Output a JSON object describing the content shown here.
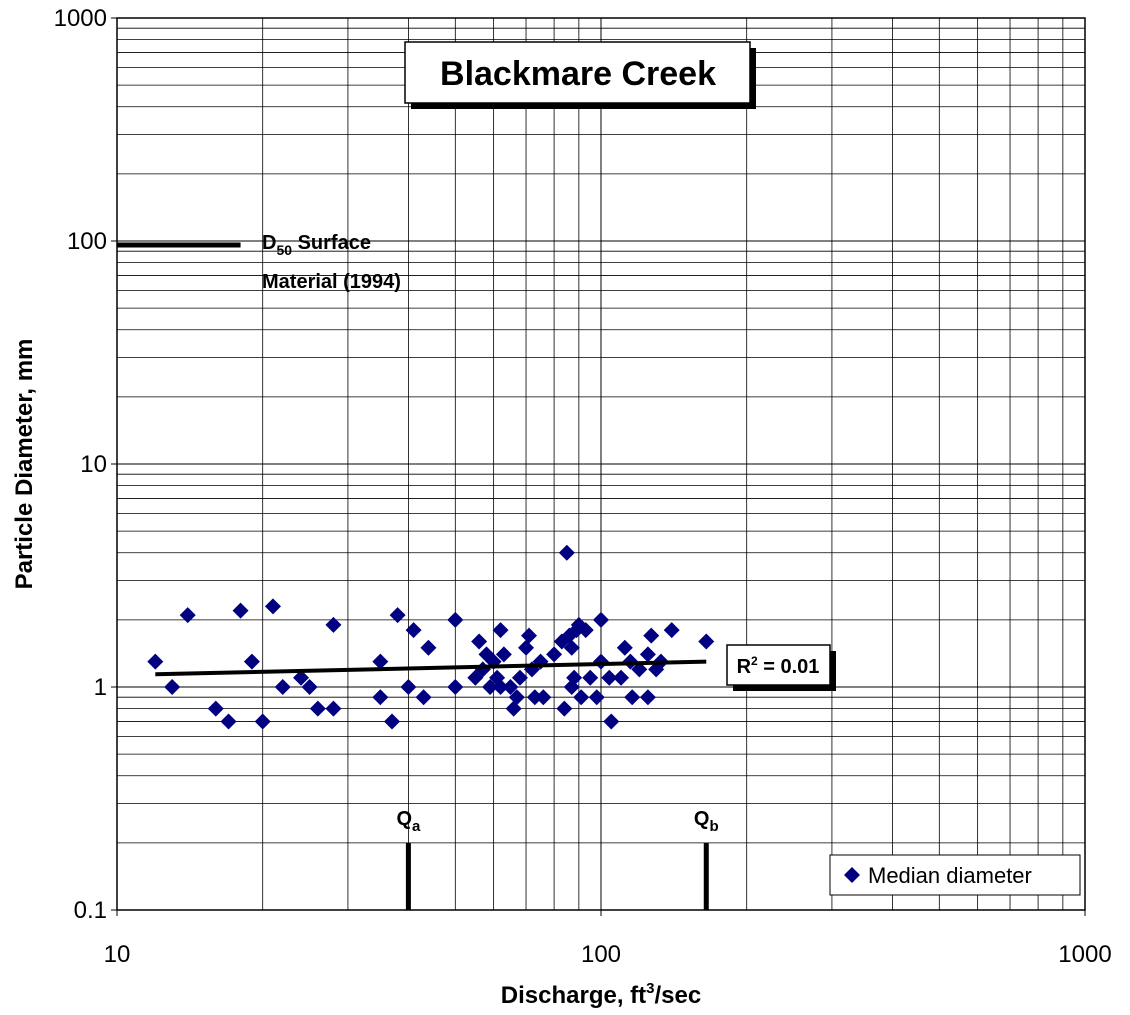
{
  "chart_data": {
    "type": "scatter",
    "title": "Blackmare Creek",
    "x_label": [
      "Discharge, ft",
      "3",
      "/sec"
    ],
    "y_label": "Particle Diameter, mm",
    "xlim": [
      10,
      1000
    ],
    "ylim": [
      0.1,
      1000
    ],
    "xticks": [
      10,
      100,
      1000
    ],
    "yticks": [
      0.1,
      1,
      10,
      100,
      1000
    ],
    "log_x": true,
    "log_y": true,
    "grid": true,
    "minor_grid": true,
    "legend": "lower right",
    "series": [
      {
        "name": "Median diameter",
        "color": "#000080",
        "x": [
          12,
          13,
          14,
          16,
          17,
          18,
          19,
          20,
          21,
          22,
          24,
          25,
          26,
          28,
          28,
          35,
          35,
          37,
          38,
          40,
          41,
          43,
          44,
          50,
          50,
          55,
          56,
          57,
          58,
          59,
          60,
          61,
          62,
          62,
          63,
          65,
          66,
          67,
          68,
          70,
          71,
          72,
          73,
          75,
          76,
          80,
          83,
          84,
          85,
          86,
          87,
          87,
          88,
          89,
          90,
          91,
          93,
          95,
          98,
          100,
          100,
          104,
          105,
          110,
          112,
          115,
          116,
          120,
          125,
          125,
          127,
          130,
          133,
          140,
          165
        ],
        "values": [
          1.3,
          1.0,
          2.1,
          0.8,
          0.7,
          2.2,
          1.3,
          0.7,
          2.3,
          1.0,
          1.1,
          1.0,
          0.8,
          0.8,
          1.9,
          1.3,
          0.9,
          0.7,
          2.1,
          1.0,
          1.8,
          0.9,
          1.5,
          1.0,
          2.0,
          1.1,
          1.6,
          1.2,
          1.4,
          1.0,
          1.3,
          1.1,
          1.8,
          1.0,
          1.4,
          1.0,
          0.8,
          0.9,
          1.1,
          1.5,
          1.7,
          1.2,
          0.9,
          1.3,
          0.9,
          1.4,
          1.6,
          0.8,
          4.0,
          1.7,
          1.0,
          1.5,
          1.1,
          1.8,
          1.9,
          0.9,
          1.8,
          1.1,
          0.9,
          1.3,
          2.0,
          1.1,
          0.7,
          1.1,
          1.5,
          1.3,
          0.9,
          1.2,
          1.4,
          0.9,
          1.7,
          1.2,
          1.3,
          1.8,
          1.6
        ]
      }
    ],
    "trendline": {
      "x": [
        12,
        165
      ],
      "values": [
        1.14,
        1.3
      ],
      "label": [
        "R",
        "2",
        " = 0.01"
      ]
    },
    "d50_line": {
      "x": [
        10,
        18
      ],
      "values": [
        96,
        96
      ],
      "label": [
        "D",
        "50",
        " Surface",
        "Material (1994)"
      ]
    },
    "markers": [
      {
        "label": [
          "Q",
          "a"
        ],
        "x": [
          40,
          40
        ],
        "values": [
          0.1,
          0.2
        ]
      },
      {
        "label": [
          "Q",
          "b"
        ],
        "x": [
          165,
          165
        ],
        "values": [
          0.1,
          0.2
        ]
      }
    ]
  }
}
